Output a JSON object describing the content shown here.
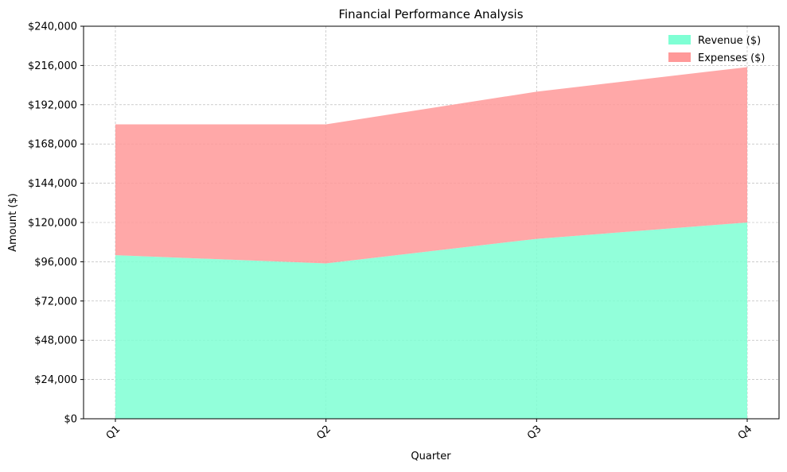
{
  "chart_data": {
    "type": "area",
    "stacked": true,
    "title": "Financial Performance Analysis",
    "xlabel": "Quarter",
    "ylabel": "Amount ($)",
    "categories": [
      "Q1",
      "Q2",
      "Q3",
      "Q4"
    ],
    "series": [
      {
        "name": "Revenue ($)",
        "values": [
          100000,
          95000,
          110000,
          120000
        ],
        "color": "#7fffd4"
      },
      {
        "name": "Expenses ($)",
        "values": [
          80000,
          85000,
          90000,
          95000
        ],
        "color": "#ff9999"
      }
    ],
    "ylim": [
      0,
      240000
    ],
    "yticks": [
      0,
      24000,
      48000,
      72000,
      96000,
      120000,
      144000,
      168000,
      192000,
      216000,
      240000
    ],
    "ytick_labels": [
      "$0",
      "$24,000",
      "$48,000",
      "$72,000",
      "$96,000",
      "$120,000",
      "$144,000",
      "$168,000",
      "$192,000",
      "$216,000",
      "$240,000"
    ],
    "grid": true,
    "legend_position": "top-right",
    "xtick_rotation_deg": 45
  }
}
